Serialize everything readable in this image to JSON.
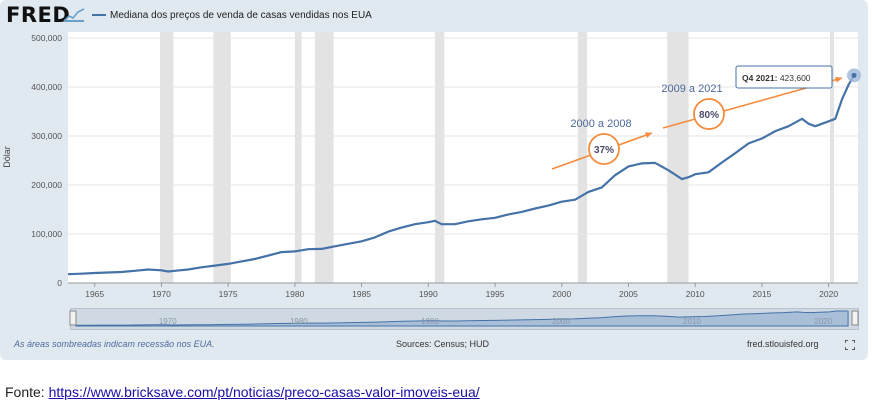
{
  "header": {
    "logo": "FRED",
    "legend_label": "Mediana dos preços de venda de casas vendidas nos EUA"
  },
  "footer": {
    "recession_note": "As áreas sombreadas indicam recessão nos EUA.",
    "sources": "Sources: Census; HUD",
    "site": "fred.stlouisfed.org"
  },
  "source_line": {
    "prefix": "Fonte: ",
    "url": "https://www.bricksave.com/pt/noticias/preco-casas-valor-imoveis-eua/"
  },
  "colors": {
    "series": "#4572a7",
    "annotation": "#f58b3c",
    "recession": "#e3e3e3"
  },
  "chart_data": {
    "type": "line",
    "ylabel": "Dólar",
    "xlabel": "",
    "xlim": [
      1963,
      2022.2
    ],
    "ylim": [
      0,
      500000
    ],
    "x_ticks": [
      1965,
      1970,
      1975,
      1980,
      1985,
      1990,
      1995,
      2000,
      2005,
      2010,
      2015,
      2020
    ],
    "y_ticks": [
      0,
      100000,
      200000,
      300000,
      400000,
      500000
    ],
    "y_tick_labels": [
      "0",
      "100,000",
      "200,000",
      "300,000",
      "400,000",
      "500,000"
    ],
    "navigator_labels": [
      1970,
      1980,
      1990,
      2000,
      2010,
      2020
    ],
    "recessions": [
      [
        1969.9,
        1970.9
      ],
      [
        1973.9,
        1975.2
      ],
      [
        1980.0,
        1980.5
      ],
      [
        1981.5,
        1982.9
      ],
      [
        1990.5,
        1991.2
      ],
      [
        2001.2,
        2001.9
      ],
      [
        2007.9,
        2009.5
      ],
      [
        2020.1,
        2020.4
      ]
    ],
    "series": [
      {
        "name": "Mediana dos preços de venda de casas vendidas nos EUA",
        "x": [
          1963,
          1964,
          1965,
          1966,
          1967,
          1968,
          1969,
          1970,
          1970.5,
          1971,
          1972,
          1973,
          1974,
          1975,
          1976,
          1977,
          1978,
          1979,
          1980,
          1981,
          1982,
          1983,
          1984,
          1985,
          1986,
          1987,
          1988,
          1989,
          1990,
          1990.5,
          1991,
          1992,
          1993,
          1994,
          1995,
          1996,
          1997,
          1998,
          1999,
          2000,
          2001,
          2002,
          2003,
          2004,
          2005,
          2006,
          2007,
          2008,
          2009,
          2009.5,
          2010,
          2011,
          2012,
          2013,
          2014,
          2015,
          2016,
          2017,
          2018,
          2018.5,
          2019,
          2020,
          2020.5,
          2021,
          2021.5,
          2021.9
        ],
        "y": [
          18000,
          19000,
          20500,
          21500,
          22500,
          25000,
          27500,
          26000,
          23500,
          25000,
          27500,
          32000,
          35500,
          39000,
          44000,
          49000,
          56000,
          63000,
          64500,
          69000,
          69500,
          75000,
          80000,
          85000,
          93000,
          105000,
          113000,
          120000,
          124000,
          127000,
          120000,
          120000,
          126000,
          130000,
          133000,
          140000,
          145000,
          152000,
          158000,
          166000,
          170000,
          186000,
          195000,
          220000,
          238000,
          244000,
          245000,
          230000,
          212000,
          216000,
          222000,
          226000,
          246000,
          265000,
          285000,
          295000,
          310000,
          320000,
          335000,
          325000,
          320000,
          330000,
          335000,
          375000,
          405000,
          423600
        ]
      }
    ],
    "annotations": [
      {
        "label": "2000 a 2008",
        "percent": "37%"
      },
      {
        "label": "2009 a 2021",
        "percent": "80%"
      },
      {
        "tooltip_label": "Q4 2021:",
        "tooltip_value": "423,600"
      }
    ]
  }
}
